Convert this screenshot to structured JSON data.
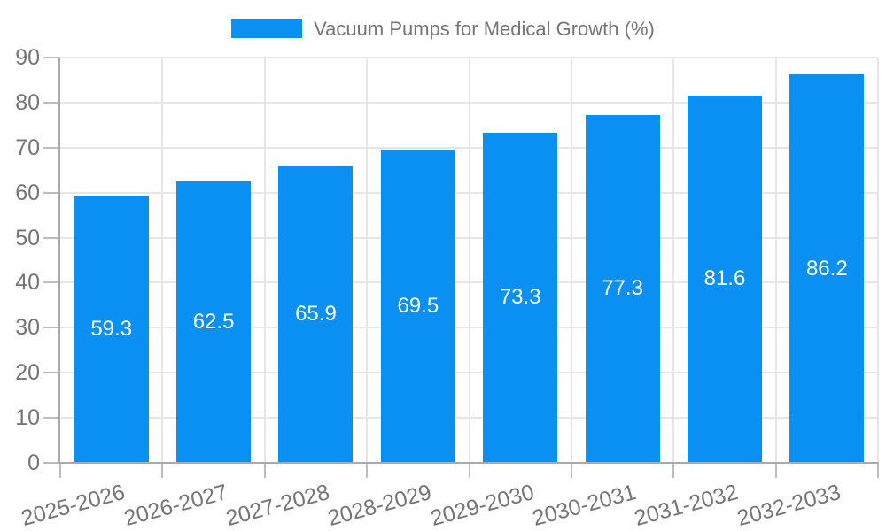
{
  "chart_data": {
    "type": "bar",
    "legend": {
      "label": "Vacuum Pumps for Medical Growth (%)",
      "position": "top-center"
    },
    "categories": [
      "2025-2026",
      "2026-2027",
      "2027-2028",
      "2028-2029",
      "2029-2030",
      "2030-2031",
      "2031-2032",
      "2032-2033"
    ],
    "values": [
      59.3,
      62.5,
      65.9,
      69.5,
      73.3,
      77.3,
      81.6,
      86.2
    ],
    "value_labels": [
      "59.3",
      "62.5",
      "65.9",
      "69.5",
      "73.3",
      "77.3",
      "81.6",
      "86.2"
    ],
    "xlabel": "",
    "ylabel": "",
    "ylim": [
      0,
      90
    ],
    "yticks": [
      0,
      10,
      20,
      30,
      40,
      50,
      60,
      70,
      80,
      90
    ],
    "grid": {
      "horizontal": true,
      "vertical_category_boundaries": true
    },
    "x_label_rotation_deg": -15,
    "colors": {
      "bar": "#0a8ff2",
      "grid": "#e6e6e6",
      "axis": "#aaaaaa",
      "tick": "#bdbdbd",
      "text": "#757575",
      "bar_label": "#ffffff",
      "background": "#ffffff"
    }
  }
}
